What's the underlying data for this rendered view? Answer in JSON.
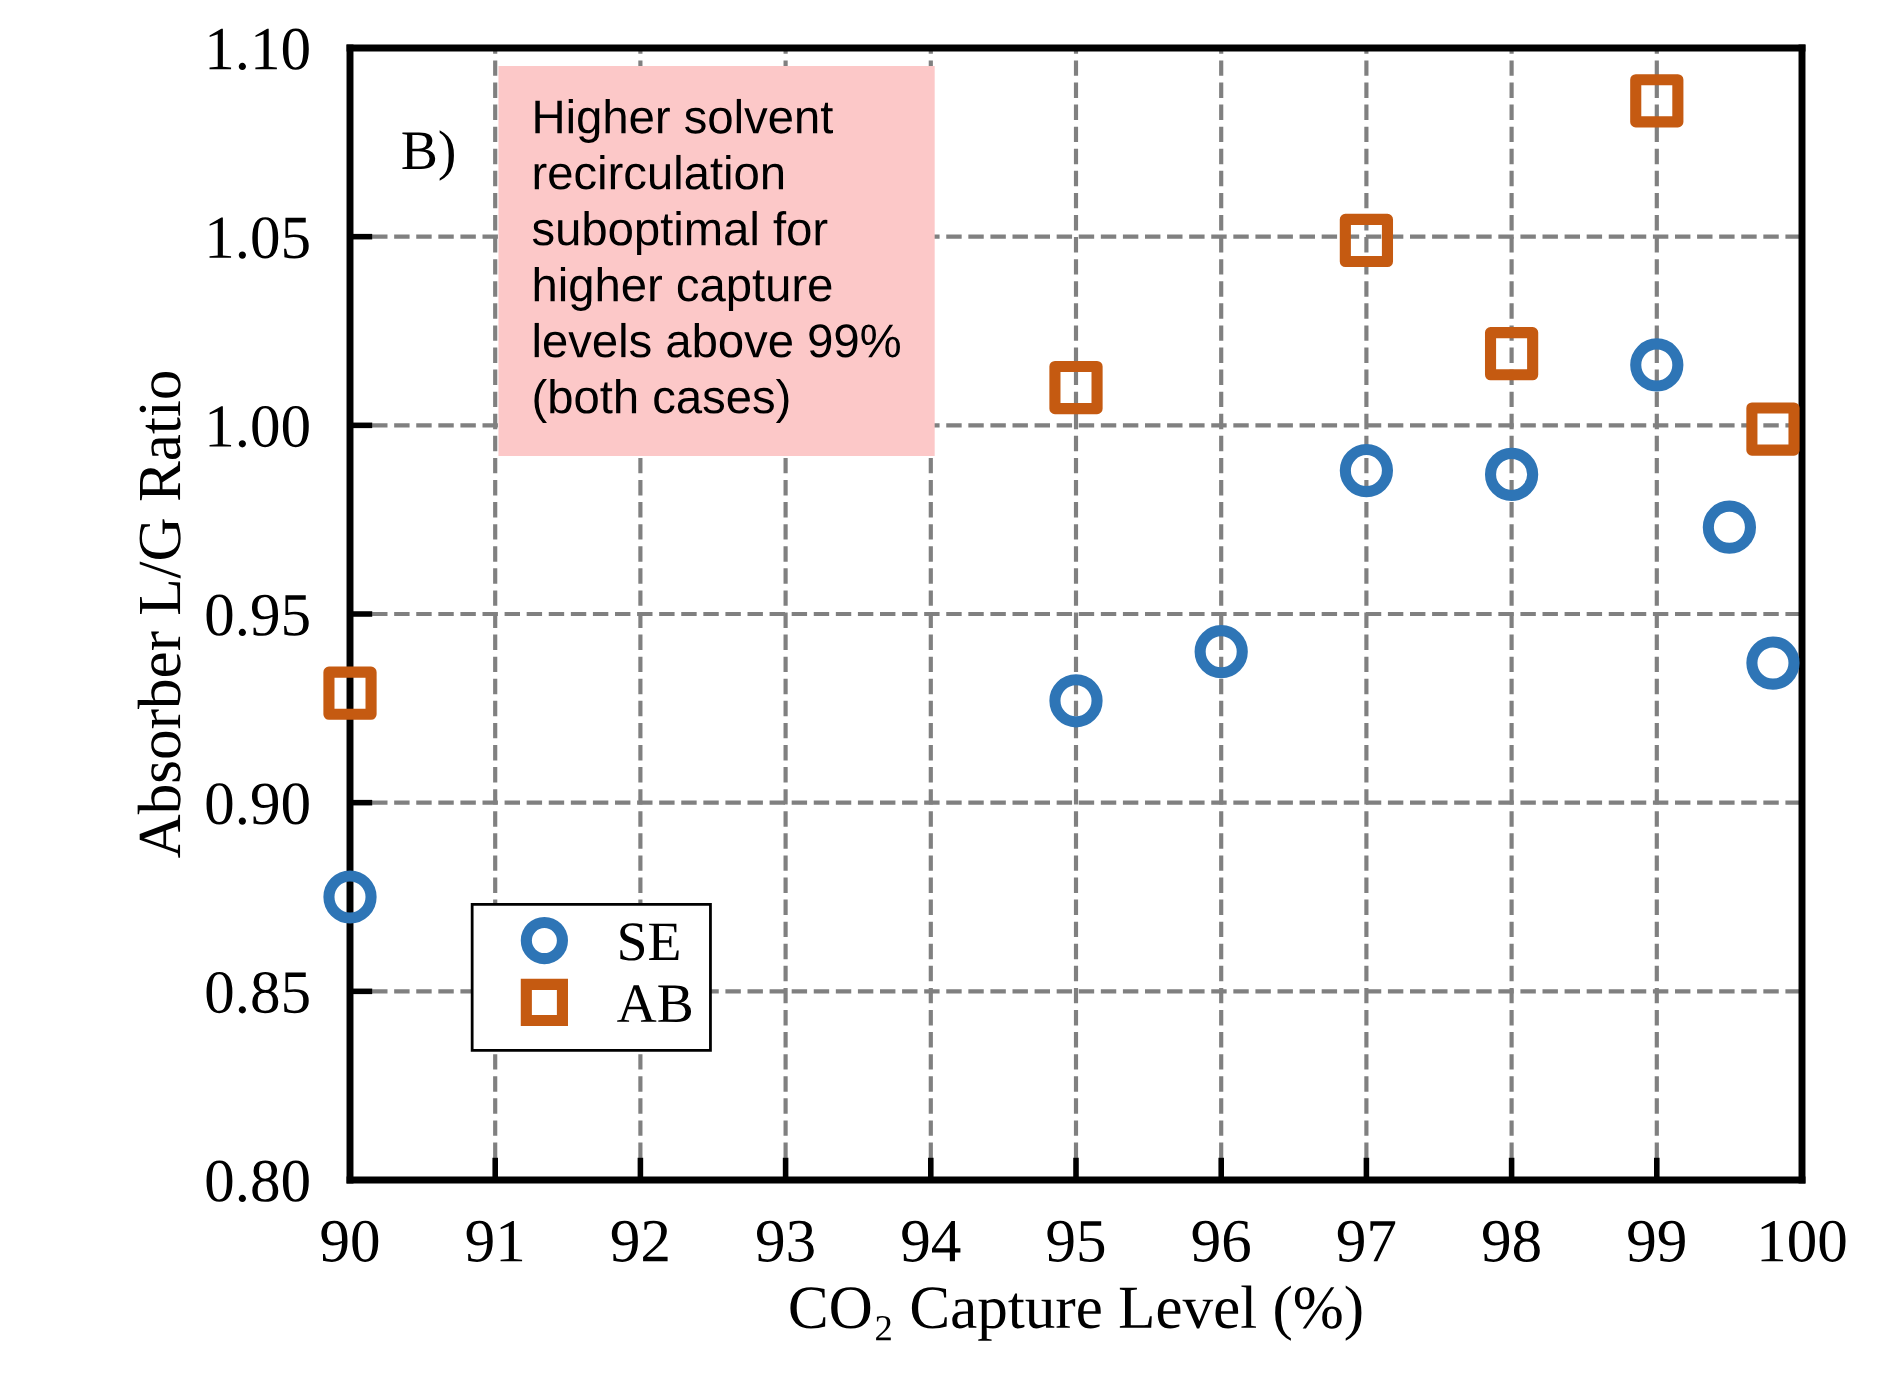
{
  "chart_data": {
    "type": "scatter",
    "xlabel": "CO₂ Capture Level (%)",
    "ylabel": "Absorber L/G Ratio",
    "xlim": [
      90,
      100
    ],
    "xticks": [
      90,
      91,
      92,
      93,
      94,
      95,
      96,
      97,
      98,
      99,
      100
    ],
    "ylim": [
      0.8,
      1.1
    ],
    "yticks": [
      {
        "value": 0.8,
        "label": "0.80"
      },
      {
        "value": 0.85,
        "label": "0.85"
      },
      {
        "value": 0.9,
        "label": "0.90"
      },
      {
        "value": 0.95,
        "label": "0.95"
      },
      {
        "value": 1.0,
        "label": "1.00"
      },
      {
        "value": 1.05,
        "label": "1.05"
      },
      {
        "value": 1.1,
        "label": "1.10"
      }
    ],
    "grid": true,
    "legend": "bottom left",
    "annotations": [
      "B)",
      "Higher solvent\nrecirculation\nsuboptimal for\nhigher capture\nlevels above 99%\n(both cases)"
    ],
    "series": [
      {
        "name": "SE",
        "color": "#2e75b6",
        "marker": "circle",
        "x": [
          90,
          95,
          96,
          97,
          98,
          99,
          99.5,
          99.8
        ],
        "values": [
          0.875,
          0.927,
          0.94,
          0.988,
          0.987,
          1.016,
          0.973,
          0.937
        ]
      },
      {
        "name": "AB",
        "color": "#c55a11",
        "marker": "square",
        "x": [
          90,
          95,
          97,
          98,
          99,
          99.8
        ],
        "values": [
          0.929,
          1.01,
          1.049,
          1.019,
          1.086,
          0.999
        ]
      }
    ]
  }
}
